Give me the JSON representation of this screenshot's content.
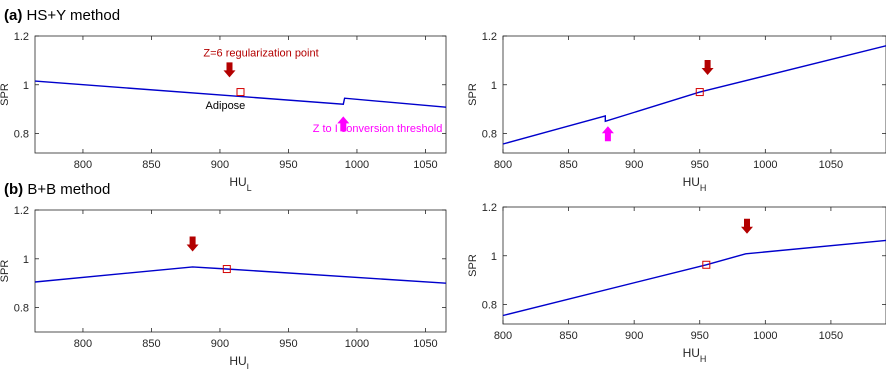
{
  "panels": {
    "a": {
      "tag": "(a)",
      "title": "HS+Y method"
    },
    "b": {
      "tag": "(b)",
      "title": "B+B method"
    }
  },
  "chart_data": [
    {
      "id": "a-left",
      "type": "line",
      "xlabel": "HU",
      "xlabel_sub": "L",
      "ylabel": "SPR",
      "xlim": [
        765,
        1065
      ],
      "ylim": [
        0.72,
        1.2
      ],
      "xticks": [
        800,
        850,
        900,
        950,
        1000,
        1050
      ],
      "yticks": [
        0.8,
        1,
        1.2
      ],
      "series": [
        {
          "color": "#0000cc",
          "x": [
            765,
            990,
            990,
            991,
            1065
          ],
          "y": [
            1.015,
            0.92,
            0.92,
            0.945,
            0.908
          ]
        }
      ],
      "marker": {
        "x": 915,
        "y": 0.97
      },
      "arrows": [
        {
          "color": "#b30000",
          "x": 907,
          "tip_y": 1.03,
          "direction": "down"
        },
        {
          "color": "#ff00ff",
          "x": 990,
          "tip_y": 0.87,
          "direction": "up"
        }
      ],
      "annotations": [
        {
          "text": "Z=6 regularization point",
          "color": "#b30000",
          "x": 930,
          "y": 1.115
        },
        {
          "text": "Adipose",
          "color": "#000000",
          "x": 904,
          "y": 0.9
        },
        {
          "text": "Z to I conversion threshold",
          "color": "#ff00ff",
          "x": 1015,
          "y": 0.807
        }
      ]
    },
    {
      "id": "a-right",
      "type": "line",
      "xlabel": "HU",
      "xlabel_sub": "H",
      "ylabel": "SPR",
      "xlim": [
        800,
        1092
      ],
      "ylim": [
        0.72,
        1.2
      ],
      "xticks": [
        800,
        850,
        900,
        950,
        1000,
        1050
      ],
      "yticks": [
        0.8,
        1,
        1.2
      ],
      "series": [
        {
          "color": "#0000cc",
          "x": [
            800,
            878,
            878,
            950,
            1092
          ],
          "y": [
            0.757,
            0.872,
            0.85,
            0.97,
            1.16
          ]
        }
      ],
      "marker": {
        "x": 950,
        "y": 0.97
      },
      "arrows": [
        {
          "color": "#b30000",
          "x": 956,
          "tip_y": 1.04,
          "direction": "down"
        },
        {
          "color": "#ff00ff",
          "x": 880,
          "tip_y": 0.83,
          "direction": "up"
        }
      ],
      "annotations": []
    },
    {
      "id": "b-left",
      "type": "line",
      "xlabel": "HU",
      "xlabel_sub": "L",
      "ylabel": "SPR",
      "xlim": [
        765,
        1065
      ],
      "ylim": [
        0.7,
        1.2
      ],
      "xticks": [
        800,
        850,
        900,
        950,
        1000,
        1050
      ],
      "yticks": [
        0.8,
        1,
        1.2
      ],
      "series": [
        {
          "color": "#0000cc",
          "x": [
            765,
            880,
            905,
            1065
          ],
          "y": [
            0.905,
            0.967,
            0.958,
            0.9
          ]
        }
      ],
      "marker": {
        "x": 905,
        "y": 0.958
      },
      "arrows": [
        {
          "color": "#b30000",
          "x": 880,
          "tip_y": 1.03,
          "direction": "down"
        }
      ],
      "annotations": []
    },
    {
      "id": "b-right",
      "type": "line",
      "xlabel": "HU",
      "xlabel_sub": "H",
      "ylabel": "SPR",
      "xlim": [
        800,
        1092
      ],
      "ylim": [
        0.72,
        1.2
      ],
      "xticks": [
        800,
        850,
        900,
        950,
        1000,
        1050
      ],
      "yticks": [
        0.8,
        1,
        1.2
      ],
      "series": [
        {
          "color": "#0000cc",
          "x": [
            800,
            955,
            985,
            1092
          ],
          "y": [
            0.755,
            0.963,
            1.008,
            1.063
          ]
        }
      ],
      "marker": {
        "x": 955,
        "y": 0.963
      },
      "arrows": [
        {
          "color": "#b30000",
          "x": 986,
          "tip_y": 1.09,
          "direction": "down"
        }
      ],
      "annotations": []
    }
  ]
}
